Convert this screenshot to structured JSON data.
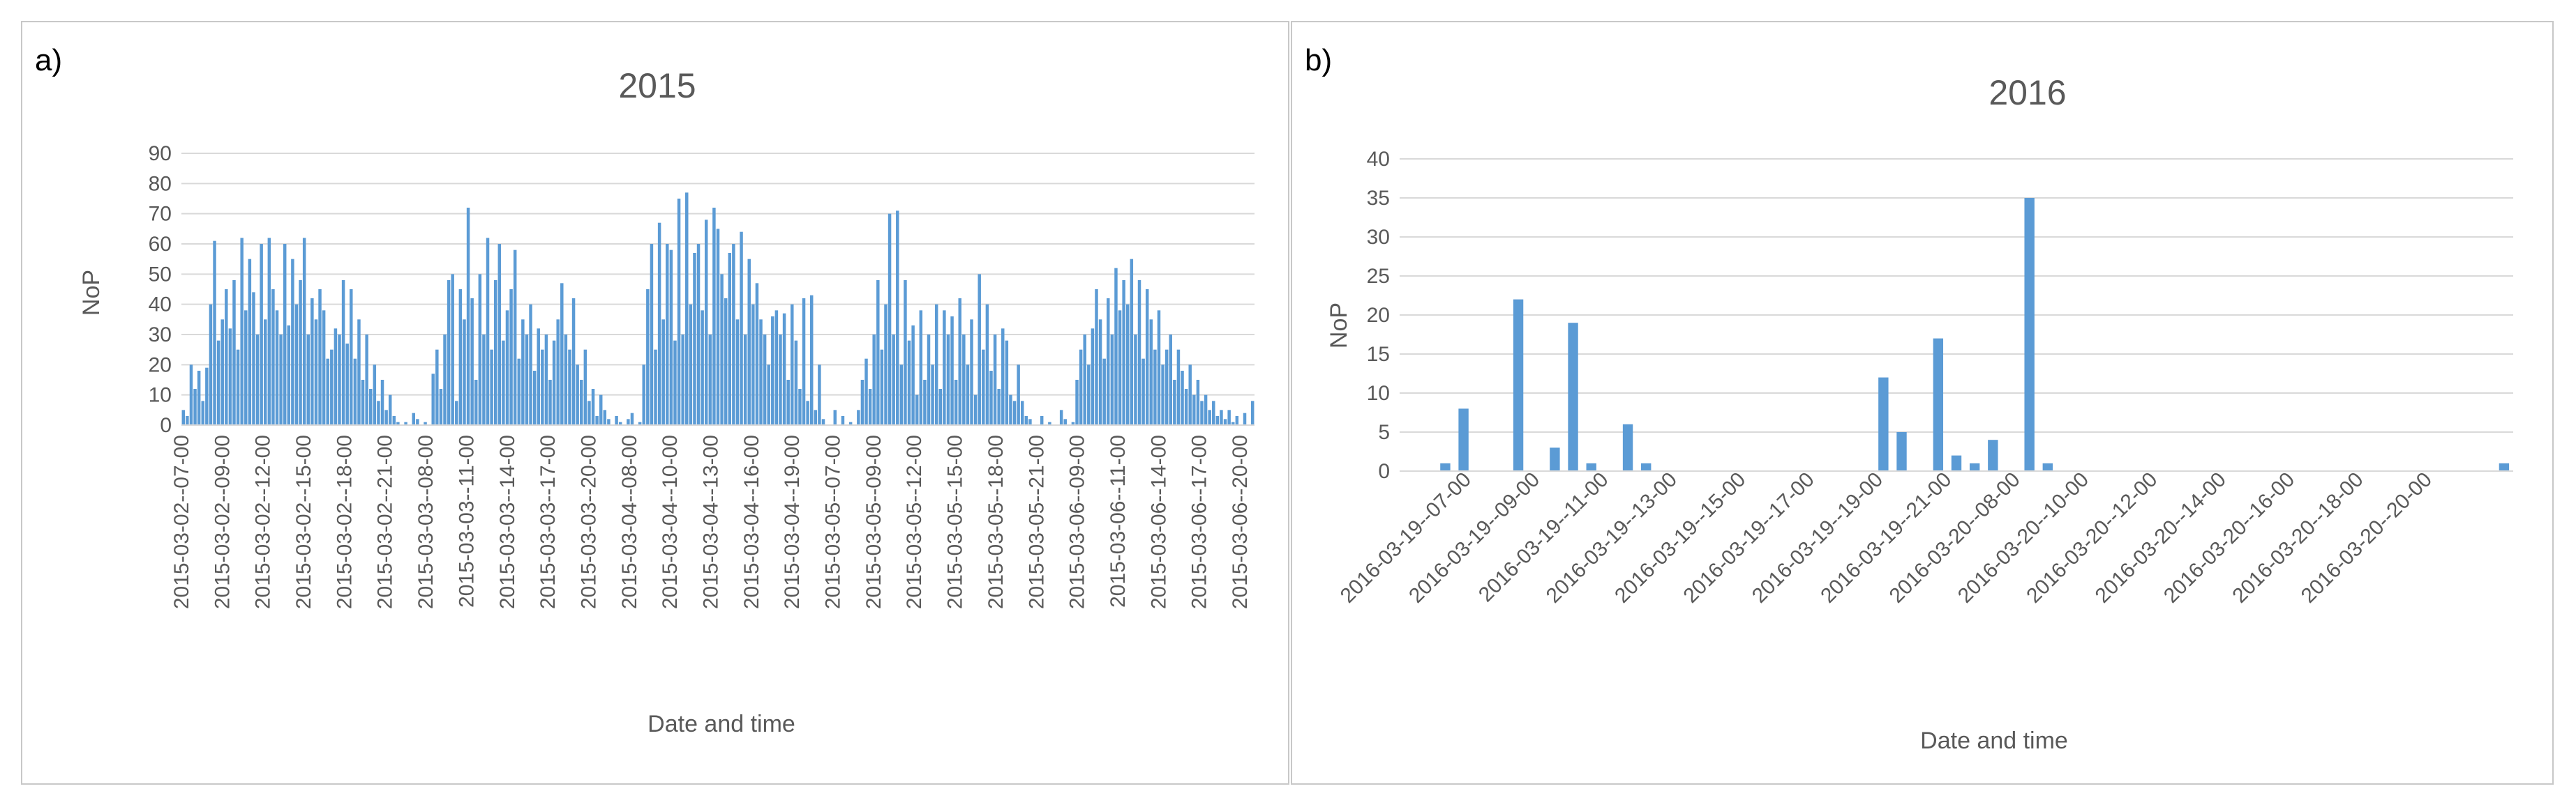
{
  "colors": {
    "bar": "#5b9bd5",
    "grid": "#d9d9d9",
    "text": "#595959",
    "border": "#c8c8c8"
  },
  "chart_data": [
    {
      "panel_label": "a)",
      "type": "bar",
      "title": "2015",
      "xlabel": "Date and time",
      "ylabel": "NoP",
      "ylim": [
        0,
        90
      ],
      "yticks": [
        0,
        10,
        20,
        30,
        40,
        50,
        60,
        70,
        80,
        90
      ],
      "grid": true,
      "x_tick_labels": [
        "2015-03-02--07-00",
        "2015-03-02--09-00",
        "2015-03-02--12-00",
        "2015-03-02--15-00",
        "2015-03-02--18-00",
        "2015-03-02--21-00",
        "2015-03-03--08-00",
        "2015-03-03--11-00",
        "2015-03-03--14-00",
        "2015-03-03--17-00",
        "2015-03-03--20-00",
        "2015-03-04--08-00",
        "2015-03-04--10-00",
        "2015-03-04--13-00",
        "2015-03-04--16-00",
        "2015-03-04--19-00",
        "2015-03-05--07-00",
        "2015-03-05--09-00",
        "2015-03-05--12-00",
        "2015-03-05--15-00",
        "2015-03-05--18-00",
        "2015-03-05--21-00",
        "2015-03-06--09-00",
        "2015-03-06--11-00",
        "2015-03-06--14-00",
        "2015-03-06--17-00",
        "2015-03-06--20-00"
      ],
      "values": [
        5,
        3,
        20,
        12,
        18,
        8,
        19,
        40,
        61,
        28,
        35,
        45,
        32,
        48,
        25,
        62,
        38,
        55,
        44,
        30,
        60,
        35,
        62,
        45,
        38,
        30,
        60,
        33,
        55,
        40,
        48,
        62,
        30,
        42,
        35,
        45,
        38,
        22,
        25,
        32,
        30,
        48,
        27,
        45,
        22,
        35,
        15,
        30,
        12,
        20,
        8,
        15,
        5,
        10,
        3,
        1,
        0,
        1,
        0,
        4,
        2,
        0,
        1,
        0,
        17,
        25,
        12,
        30,
        48,
        50,
        8,
        45,
        35,
        72,
        42,
        15,
        50,
        30,
        62,
        25,
        48,
        60,
        28,
        38,
        45,
        58,
        22,
        35,
        30,
        40,
        18,
        32,
        25,
        30,
        15,
        28,
        35,
        47,
        30,
        25,
        42,
        20,
        15,
        25,
        8,
        12,
        3,
        10,
        5,
        2,
        0,
        3,
        1,
        0,
        2,
        4,
        0,
        1,
        20,
        45,
        60,
        25,
        67,
        35,
        60,
        58,
        28,
        75,
        30,
        77,
        40,
        57,
        60,
        38,
        68,
        30,
        72,
        65,
        50,
        42,
        57,
        60,
        35,
        64,
        30,
        55,
        40,
        47,
        35,
        30,
        20,
        36,
        38,
        30,
        37,
        15,
        40,
        28,
        12,
        42,
        8,
        43,
        5,
        20,
        2,
        0,
        0,
        5,
        0,
        3,
        0,
        1,
        0,
        5,
        15,
        22,
        12,
        30,
        48,
        25,
        40,
        70,
        30,
        71,
        20,
        48,
        28,
        33,
        10,
        38,
        15,
        30,
        20,
        40,
        12,
        38,
        30,
        36,
        15,
        42,
        30,
        20,
        35,
        10,
        50,
        25,
        40,
        18,
        30,
        12,
        32,
        28,
        10,
        8,
        20,
        8,
        3,
        2,
        0,
        0,
        3,
        0,
        1,
        0,
        0,
        5,
        2,
        0,
        1,
        15,
        25,
        30,
        20,
        32,
        45,
        35,
        22,
        42,
        30,
        52,
        38,
        48,
        40,
        55,
        30,
        48,
        22,
        45,
        35,
        25,
        38,
        20,
        25,
        30,
        15,
        25,
        18,
        12,
        20,
        10,
        15,
        8,
        10,
        5,
        8,
        3,
        5,
        2,
        5,
        1,
        3,
        0,
        4,
        0,
        8
      ],
      "bar_color": "#5b9bd5"
    },
    {
      "panel_label": "b)",
      "type": "bar",
      "title": "2016",
      "xlabel": "Date and time",
      "ylabel": "NoP",
      "ylim": [
        0,
        40
      ],
      "yticks": [
        0,
        5,
        10,
        15,
        20,
        25,
        30,
        35,
        40
      ],
      "grid": true,
      "x_tick_labels": [
        "2016-03-19--07-00",
        "2016-03-19--09-00",
        "2016-03-19--11-00",
        "2016-03-19--13-00",
        "2016-03-19--15-00",
        "2016-03-19--17-00",
        "2016-03-19--19-00",
        "2016-03-19--21-00",
        "2016-03-20--08-00",
        "2016-03-20--10-00",
        "2016-03-20--12-00",
        "2016-03-20--14-00",
        "2016-03-20--16-00",
        "2016-03-20--18-00",
        "2016-03-20--20-00"
      ],
      "values": [
        0,
        0,
        1,
        8,
        0,
        0,
        22,
        0,
        3,
        19,
        1,
        0,
        6,
        1,
        0,
        0,
        0,
        0,
        0,
        0,
        0,
        0,
        0,
        0,
        0,
        0,
        12,
        5,
        0,
        17,
        2,
        1,
        4,
        0,
        35,
        1,
        0,
        0,
        0,
        0,
        0,
        0,
        0,
        0,
        0,
        0,
        0,
        0,
        0,
        0,
        0,
        0,
        0,
        0,
        0,
        0,
        0,
        0,
        0,
        0,
        1
      ],
      "bar_color": "#5b9bd5"
    }
  ]
}
